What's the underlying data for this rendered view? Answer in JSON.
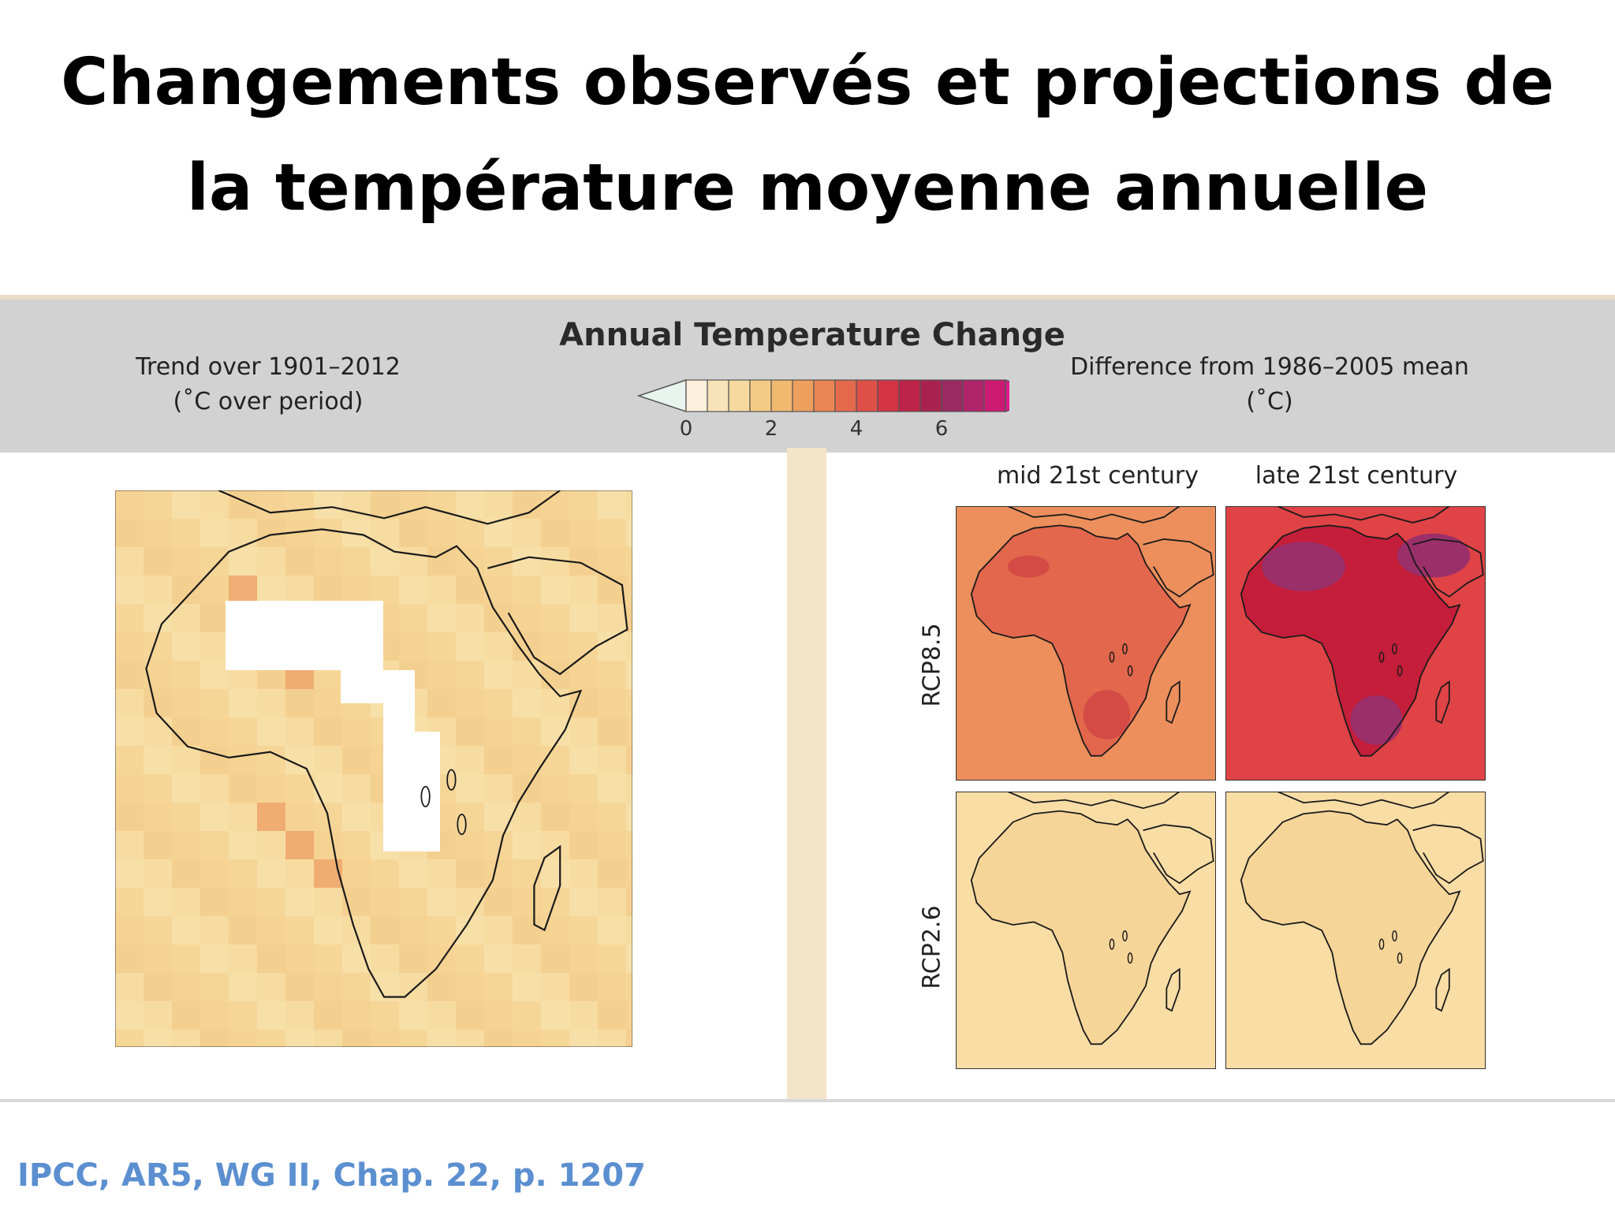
{
  "slide": {
    "title_line1": "Changements observés et projections de",
    "title_line2": "la température moyenne annuelle",
    "source": "IPCC, AR5, WG II, Chap. 22, p. 1207"
  },
  "figure": {
    "title": "Annual Temperature Change",
    "left_header_line1": "Trend over 1901–2012",
    "left_header_line2": "(˚C over period)",
    "right_header_line1": "Difference from 1986–2005 mean",
    "right_header_line2": "(˚C)",
    "colorbar": {
      "ticks": [
        "0",
        "2",
        "4",
        "6"
      ],
      "colors": [
        "#fbf0dc",
        "#f8e3b8",
        "#f6d99f",
        "#f4cb85",
        "#f1b870",
        "#ee9f5e",
        "#ea8553",
        "#e56a4d",
        "#de4f48",
        "#d23445",
        "#bd2447",
        "#a8214f",
        "#9a2a62",
        "#b0246b",
        "#cc1a72"
      ],
      "low_arrow_color": "#e8f4ee",
      "high_arrow_color": "#e0188a"
    },
    "column_labels": [
      "mid 21st century",
      "late 21st century"
    ],
    "row_labels": [
      "RCP8.5",
      "RCP2.6"
    ],
    "colors": {
      "observed_base": "#f6d99b",
      "missing_data": "#ffffff",
      "rcp85_mid": "#ec8f5c",
      "rcp85_late": "#df4346",
      "rcp26": "#f8dda5",
      "coast": "#1a1a1a"
    }
  }
}
